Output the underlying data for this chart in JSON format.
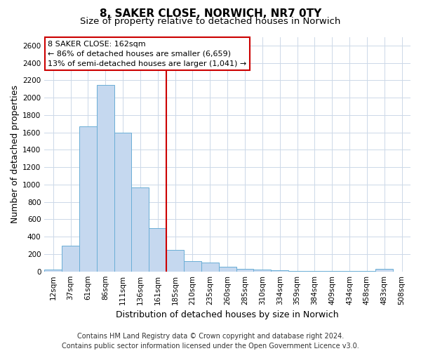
{
  "title_line1": "8, SAKER CLOSE, NORWICH, NR7 0TY",
  "title_line2": "Size of property relative to detached houses in Norwich",
  "xlabel": "Distribution of detached houses by size in Norwich",
  "ylabel": "Number of detached properties",
  "categories": [
    "12sqm",
    "37sqm",
    "61sqm",
    "86sqm",
    "111sqm",
    "136sqm",
    "161sqm",
    "185sqm",
    "210sqm",
    "235sqm",
    "260sqm",
    "285sqm",
    "310sqm",
    "334sqm",
    "359sqm",
    "384sqm",
    "409sqm",
    "434sqm",
    "458sqm",
    "483sqm",
    "508sqm"
  ],
  "values": [
    25,
    300,
    1670,
    2150,
    1600,
    970,
    500,
    250,
    120,
    100,
    50,
    30,
    20,
    10,
    5,
    5,
    5,
    5,
    5,
    30,
    0
  ],
  "bar_color": "#c5d8ef",
  "bar_edge_color": "#6aaed6",
  "annotation_title": "8 SAKER CLOSE: 162sqm",
  "annotation_line1": "← 86% of detached houses are smaller (6,659)",
  "annotation_line2": "13% of semi-detached houses are larger (1,041) →",
  "vline_color": "#cc0000",
  "vline_x": 6.5,
  "box_color": "#cc0000",
  "ylim": [
    0,
    2700
  ],
  "yticks": [
    0,
    200,
    400,
    600,
    800,
    1000,
    1200,
    1400,
    1600,
    1800,
    2000,
    2200,
    2400,
    2600
  ],
  "footer_line1": "Contains HM Land Registry data © Crown copyright and database right 2024.",
  "footer_line2": "Contains public sector information licensed under the Open Government Licence v3.0.",
  "bg_color": "#ffffff",
  "grid_color": "#ccd8e8",
  "title_fontsize": 11,
  "subtitle_fontsize": 9.5,
  "axis_label_fontsize": 9,
  "tick_fontsize": 7.5,
  "annot_fontsize": 8,
  "footer_fontsize": 7
}
